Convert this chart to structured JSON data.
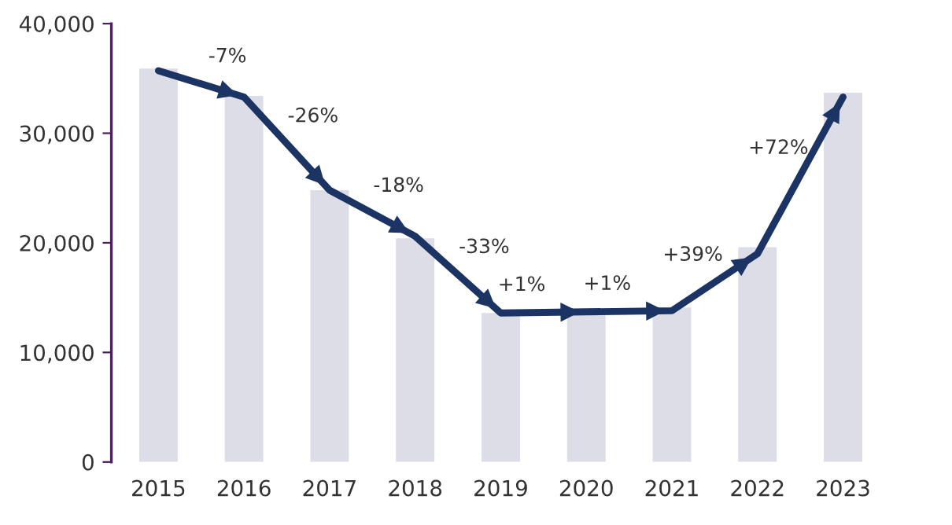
{
  "chart_data": {
    "type": "bar",
    "categories": [
      "2015",
      "2016",
      "2017",
      "2018",
      "2019",
      "2020",
      "2021",
      "2022",
      "2023"
    ],
    "series": [
      {
        "color": "#dcdde6",
        "values": [
          35900,
          33400,
          24800,
          20400,
          13600,
          13400,
          14100,
          19600,
          33700
        ]
      },
      {
        "type": "line",
        "color": "#1b3463",
        "values": [
          35700,
          33300,
          24800,
          20600,
          13600,
          13700,
          13800,
          19000,
          33300
        ]
      }
    ],
    "ylim": [
      0,
      40000
    ],
    "yticks": [
      {
        "value": 0,
        "label": "0"
      },
      {
        "value": 10000,
        "label": "10,000"
      },
      {
        "value": 20000,
        "label": "20,000"
      },
      {
        "value": 30000,
        "label": "30,000"
      },
      {
        "value": 40000,
        "label": "40,000"
      }
    ],
    "annotations": [
      "-7%",
      "-26%",
      "-18%",
      "-33%",
      "+1%",
      "+1%",
      "+39%",
      "+72%"
    ],
    "grid": false,
    "legend": false
  }
}
